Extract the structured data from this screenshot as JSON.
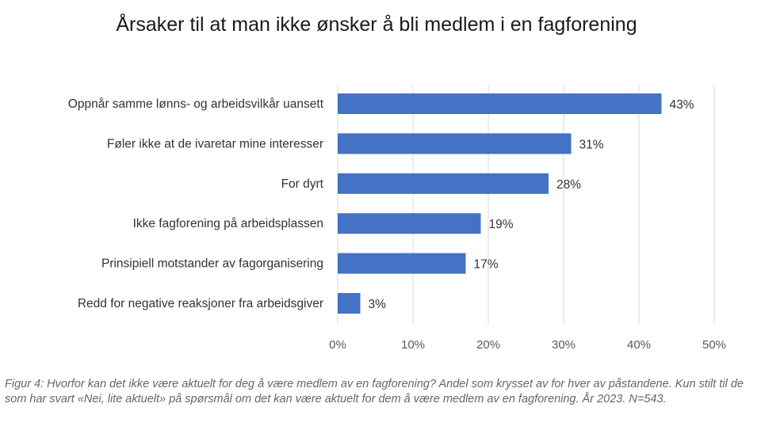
{
  "chart_data": {
    "type": "bar",
    "orientation": "horizontal",
    "title": "Årsaker til at man ikke ønsker å bli medlem i en fagforening",
    "categories": [
      "Oppnår samme lønns- og arbeidsvilkår uansett",
      "Føler ikke at de ivaretar mine interesser",
      "For dyrt",
      "Ikke fagforening på arbeidsplassen",
      "Prinsipiell motstander av fagorganisering",
      "Redd for negative reaksjoner fra arbeidsgiver"
    ],
    "values": [
      43,
      31,
      28,
      19,
      17,
      3
    ],
    "value_labels": [
      "43%",
      "31%",
      "28%",
      "19%",
      "17%",
      "3%"
    ],
    "xlim": [
      0,
      50
    ],
    "xticks": [
      "0%",
      "10%",
      "20%",
      "30%",
      "40%",
      "50%"
    ],
    "grid": true,
    "bar_color": "#4472c4"
  },
  "caption": "Figur 4: Hvorfor kan det ikke være aktuelt for deg å være medlem av en fagforening? Andel som krysset av for hver av påstandene. Kun stilt til de som har svart «Nei, lite aktuelt» på spørsmål om det kan være aktuelt for dem å være medlem av en fagforening. År 2023. N=543."
}
